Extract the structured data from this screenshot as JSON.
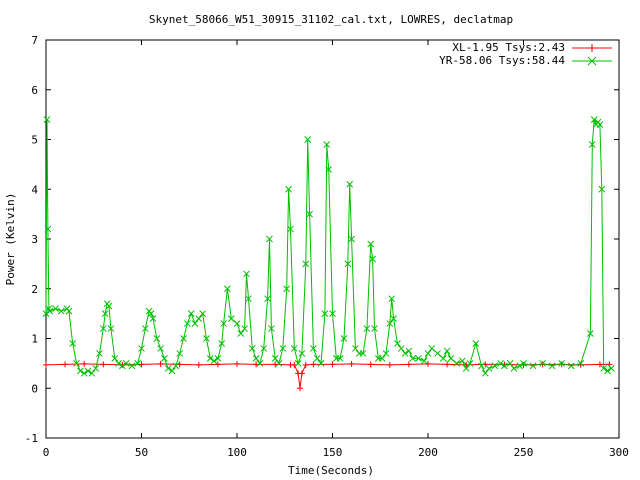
{
  "chart_data": {
    "type": "line",
    "title": "Skynet_58066_W51_30915_31102_cal.txt, LOWRES, declatmap",
    "xlabel": "Time(Seconds)",
    "ylabel": "Power (Kelvin)",
    "xlim": [
      0,
      300
    ],
    "ylim": [
      -1,
      7
    ],
    "xticks": [
      0,
      50,
      100,
      150,
      200,
      250,
      300
    ],
    "yticks": [
      -1,
      0,
      1,
      2,
      3,
      4,
      5,
      6,
      7
    ],
    "grid": false,
    "legend_position": "top-right",
    "series": [
      {
        "name": "XL-1.95 Tsys:2.43",
        "color": "#ff0000",
        "marker": "plus",
        "x": [
          0,
          10,
          20,
          30,
          40,
          50,
          60,
          70,
          80,
          90,
          100,
          110,
          120,
          128,
          130,
          132,
          133,
          134,
          136,
          140,
          150,
          160,
          170,
          180,
          190,
          200,
          210,
          220,
          230,
          240,
          250,
          260,
          270,
          280,
          290,
          295
        ],
        "y": [
          0.47,
          0.48,
          0.49,
          0.48,
          0.47,
          0.48,
          0.49,
          0.48,
          0.47,
          0.48,
          0.49,
          0.48,
          0.48,
          0.47,
          0.47,
          0.3,
          0.0,
          0.3,
          0.47,
          0.48,
          0.48,
          0.49,
          0.48,
          0.47,
          0.48,
          0.49,
          0.48,
          0.47,
          0.48,
          0.48,
          0.47,
          0.48,
          0.48,
          0.47,
          0.48,
          0.48
        ]
      },
      {
        "name": "YR-58.06 Tsys:58.44",
        "color": "#00c000",
        "marker": "cross",
        "x": [
          0,
          0.5,
          1,
          1.5,
          2,
          5,
          8,
          11,
          12,
          14,
          16,
          18,
          20,
          22,
          24,
          26,
          28,
          30,
          31,
          32,
          33,
          34,
          36,
          38,
          40,
          42,
          45,
          48,
          50,
          52,
          54,
          55,
          56,
          58,
          60,
          62,
          64,
          66,
          68,
          70,
          72,
          74,
          76,
          78,
          80,
          82,
          84,
          86,
          88,
          90,
          92,
          93,
          95,
          97,
          100,
          102,
          104,
          105,
          106,
          108,
          110,
          112,
          114,
          116,
          117,
          118,
          120,
          122,
          124,
          126,
          127,
          128,
          130,
          132,
          134,
          136,
          137,
          138,
          140,
          142,
          144,
          146,
          147,
          148,
          150,
          152,
          154,
          156,
          158,
          159,
          160,
          162,
          164,
          166,
          168,
          170,
          171,
          172,
          174,
          176,
          178,
          180,
          181,
          182,
          184,
          186,
          188,
          190,
          192,
          195,
          198,
          200,
          202,
          205,
          208,
          210,
          212,
          215,
          218,
          220,
          222,
          225,
          228,
          230,
          232,
          235,
          238,
          240,
          243,
          245,
          248,
          250,
          255,
          260,
          265,
          270,
          275,
          280,
          285,
          286,
          287,
          288,
          289,
          290,
          291,
          292,
          294,
          296
        ],
        "y": [
          1.5,
          5.4,
          3.2,
          1.6,
          1.55,
          1.6,
          1.55,
          1.6,
          1.55,
          0.9,
          0.5,
          0.35,
          0.3,
          0.35,
          0.3,
          0.4,
          0.7,
          1.2,
          1.5,
          1.7,
          1.65,
          1.2,
          0.6,
          0.5,
          0.45,
          0.5,
          0.45,
          0.5,
          0.8,
          1.2,
          1.55,
          1.5,
          1.4,
          1.0,
          0.8,
          0.6,
          0.4,
          0.35,
          0.45,
          0.7,
          1.0,
          1.3,
          1.5,
          1.3,
          1.4,
          1.5,
          1.0,
          0.6,
          0.55,
          0.6,
          0.9,
          1.3,
          2.0,
          1.4,
          1.3,
          1.1,
          1.2,
          2.3,
          1.8,
          0.8,
          0.6,
          0.5,
          0.8,
          1.8,
          3.0,
          1.2,
          0.6,
          0.5,
          0.8,
          2.0,
          4.0,
          3.2,
          0.8,
          0.5,
          0.7,
          2.5,
          5.0,
          3.5,
          0.8,
          0.6,
          0.5,
          1.5,
          4.9,
          4.4,
          1.5,
          0.6,
          0.6,
          1.0,
          2.5,
          4.1,
          3.0,
          0.8,
          0.7,
          0.7,
          1.2,
          2.9,
          2.6,
          1.2,
          0.6,
          0.6,
          0.7,
          1.3,
          1.8,
          1.4,
          0.9,
          0.8,
          0.7,
          0.75,
          0.6,
          0.6,
          0.55,
          0.7,
          0.8,
          0.7,
          0.6,
          0.75,
          0.6,
          0.5,
          0.55,
          0.4,
          0.5,
          0.9,
          0.45,
          0.3,
          0.4,
          0.45,
          0.5,
          0.45,
          0.5,
          0.4,
          0.45,
          0.5,
          0.45,
          0.5,
          0.45,
          0.5,
          0.45,
          0.5,
          1.1,
          4.9,
          5.4,
          5.3,
          5.35,
          5.3,
          4.0,
          0.4,
          0.35,
          0.4
        ]
      }
    ]
  }
}
